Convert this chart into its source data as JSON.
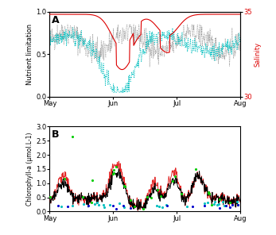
{
  "title_A": "A",
  "title_B": "B",
  "ylabel_A": "Nutrient limitation",
  "ylabel_B": "Chlorophyll-a (μmol.L-1)",
  "ylabel_right": "Salinity",
  "xtick_labels": [
    "May",
    "Jun",
    "Jul",
    "Aug"
  ],
  "ylim_A": [
    0,
    1
  ],
  "ylim_B": [
    0,
    3
  ],
  "ylim_right": [
    30,
    35
  ],
  "yticks_A": [
    0,
    0.5,
    1
  ],
  "yticks_B": [
    0,
    0.5,
    1.0,
    1.5,
    2.0,
    2.5,
    3.0
  ],
  "yticks_right": [
    30,
    35
  ],
  "color_gray": "#808080",
  "color_cyan": "#00BFBF",
  "color_red": "#DD0000",
  "color_black": "#000000",
  "color_green": "#00CC00",
  "color_blue": "#0000CC",
  "n_points": 500,
  "background": "#f5f5f5"
}
